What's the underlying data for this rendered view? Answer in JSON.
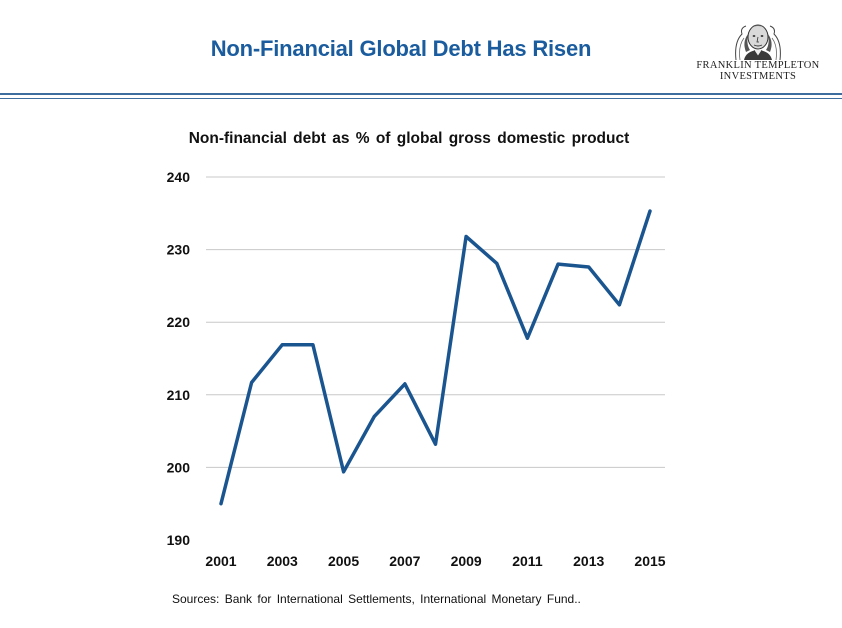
{
  "header": {
    "title": "Non-Financial Global Debt Has Risen",
    "logo_line1": "FRANKLIN TEMPLETON",
    "logo_line2": "INVESTMENTS",
    "logo_icon": "benjamin-franklin-portrait",
    "accent_color": "#1a5c9e"
  },
  "chart_data": {
    "type": "line",
    "title": "Non-financial debt as % of global gross domestic product",
    "xlabel": "",
    "ylabel": "",
    "ylim": [
      190,
      240
    ],
    "yticks": [
      190,
      200,
      210,
      220,
      230,
      240
    ],
    "xtick_labels": [
      "2001",
      "2003",
      "2005",
      "2007",
      "2009",
      "2011",
      "2013",
      "2015"
    ],
    "grid": true,
    "line_color": "#1a5590",
    "x": [
      2001,
      2002,
      2003,
      2004,
      2005,
      2006,
      2007,
      2008,
      2009,
      2010,
      2011,
      2012,
      2013,
      2014,
      2015
    ],
    "values": [
      195,
      211.7,
      216.9,
      216.9,
      199.4,
      207,
      211.5,
      203.2,
      231.8,
      228.1,
      217.8,
      228,
      227.6,
      222.4,
      235.3
    ]
  },
  "footer": {
    "source": "Sources: Bank for International Settlements, International Monetary Fund.."
  }
}
